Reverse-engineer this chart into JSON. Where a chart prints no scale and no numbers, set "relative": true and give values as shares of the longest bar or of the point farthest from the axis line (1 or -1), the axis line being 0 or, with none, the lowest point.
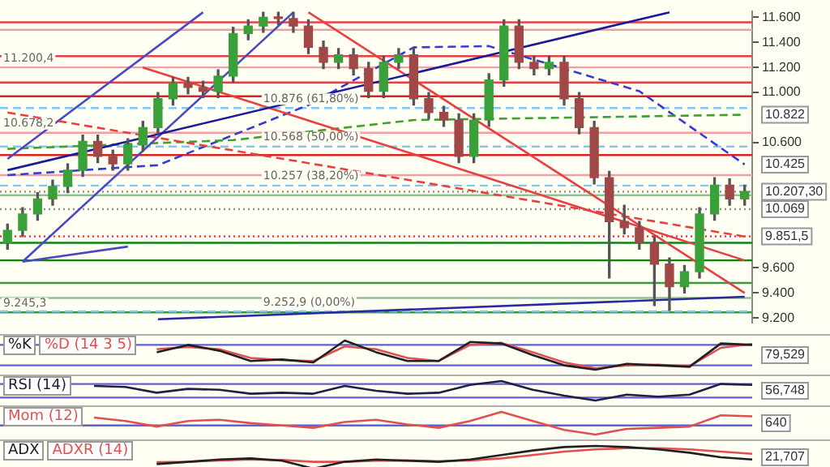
{
  "chart_data": [
    {
      "type": "candlestick",
      "categories": [
        null,
        null,
        null,
        null,
        null,
        null,
        null,
        null,
        null,
        null,
        null,
        null,
        null,
        null,
        null,
        null,
        null,
        null,
        null,
        null,
        null,
        null,
        null,
        null,
        null,
        null,
        null,
        null,
        null,
        null,
        null,
        null,
        null,
        null,
        null,
        null,
        null,
        null,
        null,
        null,
        null,
        null,
        null,
        null,
        null,
        null,
        null,
        null,
        null,
        null
      ],
      "ohlc": [
        [
          9.8,
          9.95,
          9.75,
          9.9
        ],
        [
          9.9,
          10.08,
          9.85,
          10.03
        ],
        [
          10.03,
          10.2,
          9.98,
          10.15
        ],
        [
          10.15,
          10.3,
          10.1,
          10.25
        ],
        [
          10.25,
          10.43,
          10.2,
          10.38
        ],
        [
          10.38,
          10.66,
          10.33,
          10.61
        ],
        [
          10.61,
          10.66,
          10.44,
          10.49
        ],
        [
          10.49,
          10.54,
          10.38,
          10.43
        ],
        [
          10.43,
          10.63,
          10.38,
          10.58
        ],
        [
          10.58,
          10.77,
          10.53,
          10.72
        ],
        [
          10.72,
          11,
          10.67,
          10.95
        ],
        [
          10.95,
          11.12,
          10.9,
          11.07
        ],
        [
          11.07,
          11.12,
          10.99,
          11.04
        ],
        [
          11.04,
          11.09,
          10.96,
          11.01
        ],
        [
          11.01,
          11.18,
          10.96,
          11.13
        ],
        [
          11.13,
          11.52,
          11.08,
          11.47
        ],
        [
          11.47,
          11.58,
          11.42,
          11.53
        ],
        [
          11.53,
          11.64,
          11.48,
          11.6
        ],
        [
          11.6,
          11.64,
          11.54,
          11.59
        ],
        [
          11.59,
          11.64,
          11.48,
          11.53
        ],
        [
          11.53,
          11.58,
          11.31,
          11.36
        ],
        [
          11.36,
          11.41,
          11.19,
          11.24
        ],
        [
          11.24,
          11.35,
          11.19,
          11.3
        ],
        [
          11.3,
          11.35,
          11.14,
          11.19
        ],
        [
          11.19,
          11.24,
          10.96,
          11.01
        ],
        [
          11.01,
          11.29,
          10.96,
          11.24
        ],
        [
          11.24,
          11.35,
          11.19,
          11.3
        ],
        [
          11.3,
          11.35,
          10.9,
          10.95
        ],
        [
          10.95,
          11,
          10.79,
          10.84
        ],
        [
          10.84,
          10.89,
          10.73,
          10.78
        ],
        [
          10.78,
          10.83,
          10.44,
          10.49
        ],
        [
          10.49,
          10.83,
          10.44,
          10.78
        ],
        [
          10.78,
          11.15,
          10.73,
          11.1
        ],
        [
          11.1,
          11.58,
          11.05,
          11.53
        ],
        [
          11.53,
          11.58,
          11.19,
          11.24
        ],
        [
          11.24,
          11.29,
          11.14,
          11.19
        ],
        [
          11.19,
          11.29,
          11.14,
          11.24
        ],
        [
          11.24,
          11.29,
          10.9,
          10.95
        ],
        [
          10.95,
          11,
          10.67,
          10.72
        ],
        [
          10.72,
          10.77,
          10.27,
          10.32
        ],
        [
          10.32,
          10.37,
          9.52,
          9.97
        ],
        [
          9.97,
          10.1,
          9.87,
          9.92
        ],
        [
          9.92,
          9.97,
          9.75,
          9.8
        ],
        [
          9.8,
          9.85,
          9.3,
          9.63
        ],
        [
          9.63,
          9.68,
          9.26,
          9.45
        ],
        [
          9.45,
          9.62,
          9.4,
          9.57
        ],
        [
          9.57,
          10.08,
          9.52,
          10.03
        ],
        [
          10.03,
          10.32,
          9.98,
          10.26
        ],
        [
          10.26,
          10.31,
          10.1,
          10.15
        ],
        [
          10.15,
          10.26,
          10.1,
          10.21
        ]
      ],
      "series": [
        {
          "type": "line",
          "color": "#1a1a9a",
          "values": [
            10.38,
            null,
            null,
            null,
            null,
            null,
            null,
            null,
            null,
            null,
            null,
            null,
            null,
            null,
            null,
            null,
            null,
            null,
            null,
            null,
            null,
            null,
            null,
            null,
            null,
            null,
            null,
            null,
            null,
            null,
            null,
            null,
            null,
            null,
            null,
            null,
            null,
            null,
            null,
            null,
            null,
            null,
            null,
            null,
            11.64,
            null,
            null,
            null,
            null,
            null
          ]
        },
        {
          "type": "line",
          "color": "#e84040",
          "values": [
            null,
            null,
            null,
            null,
            null,
            null,
            null,
            null,
            null,
            11.2,
            null,
            null,
            null,
            null,
            null,
            null,
            null,
            null,
            null,
            null,
            null,
            null,
            null,
            null,
            null,
            null,
            null,
            null,
            null,
            null,
            null,
            null,
            null,
            null,
            null,
            null,
            null,
            null,
            null,
            null,
            null,
            null,
            null,
            null,
            null,
            null,
            null,
            null,
            null,
            9.66
          ]
        },
        {
          "type": "line",
          "color": "#e84040",
          "values": [
            null,
            null,
            null,
            null,
            null,
            null,
            null,
            null,
            null,
            null,
            null,
            null,
            null,
            null,
            null,
            null,
            null,
            null,
            null,
            null,
            11.64,
            null,
            null,
            null,
            null,
            null,
            null,
            null,
            null,
            null,
            null,
            null,
            null,
            null,
            null,
            null,
            null,
            null,
            null,
            null,
            null,
            null,
            null,
            null,
            null,
            null,
            null,
            null,
            null,
            9.4
          ]
        },
        {
          "type": "line",
          "color": "#e84040",
          "line_style": "dashed",
          "values": [
            10.84,
            null,
            null,
            null,
            null,
            null,
            null,
            null,
            null,
            null,
            null,
            null,
            null,
            null,
            null,
            null,
            null,
            null,
            null,
            null,
            null,
            null,
            null,
            null,
            null,
            null,
            null,
            null,
            null,
            null,
            null,
            null,
            null,
            null,
            null,
            null,
            null,
            null,
            null,
            null,
            null,
            null,
            null,
            null,
            null,
            null,
            null,
            null,
            null,
            9.85
          ]
        },
        {
          "type": "line",
          "color": "#4a4ac0",
          "values": [
            10.47,
            null,
            null,
            null,
            null,
            null,
            null,
            null,
            null,
            null,
            null,
            null,
            null,
            11.64,
            null,
            null,
            null,
            null,
            null,
            null,
            null,
            null,
            null,
            null,
            null,
            null,
            null,
            null,
            null,
            null,
            null,
            null,
            null,
            null,
            null,
            null,
            null,
            null,
            null,
            null,
            null,
            null,
            null,
            null,
            null,
            null,
            null,
            null,
            null,
            null
          ]
        },
        {
          "type": "line",
          "color": "#4a4ac0",
          "values": [
            null,
            9.65,
            null,
            null,
            null,
            null,
            null,
            null,
            null,
            null,
            null,
            null,
            null,
            null,
            null,
            null,
            null,
            null,
            null,
            11.64,
            null,
            null,
            null,
            null,
            null,
            null,
            null,
            null,
            null,
            null,
            null,
            null,
            null,
            null,
            null,
            null,
            null,
            null,
            null,
            null,
            null,
            null,
            null,
            null,
            null,
            null,
            null,
            null,
            null,
            null
          ]
        },
        {
          "type": "line",
          "color": "#2a2aa0",
          "values": [
            null,
            null,
            null,
            null,
            null,
            null,
            null,
            null,
            null,
            null,
            9.19,
            null,
            null,
            null,
            null,
            null,
            null,
            null,
            null,
            null,
            null,
            null,
            null,
            null,
            null,
            null,
            null,
            null,
            null,
            null,
            null,
            null,
            null,
            null,
            null,
            null,
            null,
            null,
            null,
            null,
            null,
            null,
            null,
            null,
            null,
            null,
            null,
            null,
            null,
            9.37
          ]
        },
        {
          "type": "line",
          "color": "#4a4ac0",
          "values": [
            null,
            9.65,
            null,
            null,
            null,
            null,
            null,
            null,
            9.77,
            null,
            null,
            null,
            null,
            null,
            null,
            null,
            null,
            null,
            null,
            null,
            null,
            null,
            null,
            null,
            null,
            null,
            null,
            null,
            null,
            null,
            null,
            null,
            null,
            null,
            null,
            null,
            null,
            null,
            null,
            null,
            null,
            null,
            null,
            null,
            null,
            null,
            null,
            null,
            null,
            null
          ]
        },
        {
          "type": "line",
          "color": "#40a030",
          "line_style": "dashed",
          "values": [
            10.55,
            null,
            null,
            null,
            null,
            null,
            null,
            null,
            null,
            null,
            null,
            null,
            null,
            null,
            null,
            10.62,
            null,
            null,
            null,
            null,
            null,
            null,
            null,
            null,
            null,
            null,
            null,
            10.78,
            null,
            null,
            null,
            null,
            null,
            null,
            null,
            null,
            null,
            null,
            null,
            null,
            null,
            null,
            null,
            null,
            null,
            null,
            null,
            null,
            null,
            10.822
          ],
          "value_labels": [
            null,
            null,
            null,
            null,
            null,
            null,
            null,
            null,
            null,
            null,
            null,
            null,
            null,
            null,
            null,
            null,
            null,
            null,
            null,
            null,
            null,
            null,
            null,
            null,
            null,
            null,
            null,
            null,
            null,
            null,
            null,
            null,
            null,
            null,
            null,
            null,
            null,
            null,
            null,
            null,
            null,
            null,
            null,
            null,
            null,
            null,
            null,
            null,
            null,
            "10.822"
          ]
        },
        {
          "type": "line",
          "color": "#3a3ad0",
          "line_style": "dashed",
          "values": [
            10.34,
            null,
            null,
            null,
            null,
            null,
            null,
            null,
            null,
            null,
            10.42,
            null,
            null,
            null,
            null,
            null,
            null,
            null,
            null,
            null,
            10.9,
            null,
            null,
            null,
            null,
            null,
            null,
            11.36,
            null,
            null,
            null,
            null,
            11.37,
            null,
            null,
            null,
            null,
            null,
            null,
            null,
            null,
            null,
            11.01,
            null,
            null,
            null,
            null,
            null,
            null,
            10.425
          ],
          "value_labels": [
            null,
            null,
            null,
            null,
            null,
            null,
            null,
            null,
            null,
            null,
            null,
            null,
            null,
            null,
            null,
            null,
            null,
            null,
            null,
            null,
            null,
            null,
            null,
            null,
            null,
            null,
            null,
            null,
            null,
            null,
            null,
            null,
            null,
            null,
            null,
            null,
            null,
            null,
            null,
            null,
            null,
            null,
            null,
            null,
            null,
            null,
            null,
            null,
            null,
            "10.425"
          ]
        }
      ],
      "ylim": [
        9.16,
        11.65
      ],
      "yticks": [
        {
          "value": 9.2,
          "label": "9.200"
        },
        {
          "value": 9.4,
          "label": "9.400"
        },
        {
          "value": 9.6,
          "label": "9.600"
        },
        {
          "value": 9.8,
          "label": null
        },
        {
          "value": 10.2,
          "label": null
        },
        {
          "value": 10.6,
          "label": "10.600"
        },
        {
          "value": 11,
          "label": "11.000"
        },
        {
          "value": 11.2,
          "label": "11.200"
        },
        {
          "value": 11.4,
          "label": "11.400"
        },
        {
          "value": 11.6,
          "label": "11.600"
        }
      ],
      "tick_labels": "y",
      "grid": false,
      "marker": "none",
      "ref_lines": [
        {
          "axis": "y",
          "value": 11.56,
          "color": "#e84040"
        },
        {
          "axis": "y",
          "value": 11.5,
          "color": "#f0a0a0"
        },
        {
          "axis": "y",
          "value": 11.29,
          "color": "#e84040"
        },
        {
          "axis": "y",
          "value": 11.2004,
          "color": "#f0a0a0",
          "label": "11.200,4"
        },
        {
          "axis": "y",
          "value": 11.08,
          "color": "#e84040"
        },
        {
          "axis": "y",
          "value": 10.97,
          "color": "#e02020"
        },
        {
          "axis": "y",
          "value": 10.6782,
          "color": "#f0a0a0",
          "label": "10.678,2"
        },
        {
          "axis": "y",
          "value": 10.5,
          "color": "#e02020"
        },
        {
          "axis": "y",
          "value": 10.34,
          "color": "#f0a0a0"
        },
        {
          "axis": "y",
          "value": 10.18,
          "color": "#90c090"
        },
        {
          "axis": "y",
          "value": 10.069,
          "color": "#909090",
          "line_style": "dotted",
          "label": "10.069"
        },
        {
          "axis": "y",
          "value": 10.2073,
          "color": "#909090",
          "line_style": "dotted",
          "label": "10.207,30"
        },
        {
          "axis": "y",
          "value": 9.8515,
          "color": "#e84040",
          "line_style": "dotted",
          "label": "9.851,5"
        },
        {
          "axis": "y",
          "value": 9.8,
          "color": "#108010"
        },
        {
          "axis": "y",
          "value": 9.66,
          "color": "#108010"
        },
        {
          "axis": "y",
          "value": 9.48,
          "color": "#3a9a3a"
        },
        {
          "axis": "y",
          "value": 9.36,
          "color": "#90c090"
        },
        {
          "axis": "y",
          "value": 9.2453,
          "color": "#3a9a3a",
          "label": "9.245,3"
        },
        {
          "axis": "y",
          "value": 10.876,
          "color": "#80c8f0",
          "line_style": "dashed",
          "label": "10.876 (61,80%)"
        },
        {
          "axis": "y",
          "value": 10.568,
          "color": "#80c8f0",
          "line_style": "dashed",
          "label": "10.568 (50,00%)"
        },
        {
          "axis": "y",
          "value": 10.257,
          "color": "#80c8f0",
          "line_style": "dashed",
          "label": "10.257 (38,20%)"
        },
        {
          "axis": "y",
          "value": 9.2529,
          "color": "#80c8f0",
          "line_style": "dashed",
          "label": "9.252,9 (0,00%)"
        }
      ]
    },
    {
      "type": "line",
      "relative": true,
      "marker": "none",
      "legend": "top left",
      "categories": [
        null,
        null,
        null,
        null,
        null,
        null,
        null,
        null,
        null,
        null,
        null,
        null,
        null,
        null,
        null,
        null,
        null,
        null,
        null,
        null,
        null,
        null,
        null,
        null,
        null
      ],
      "series": [
        {
          "name": "%K",
          "color": "#202020",
          "values": [
            null,
            null,
            null,
            null,
            null,
            0.6,
            0.85,
            0.65,
            0.3,
            0.35,
            0.25,
            1,
            0.6,
            0.3,
            0.3,
            0.95,
            0.9,
            0.5,
            0.15,
            0,
            0.2,
            0.15,
            0.1,
            0.9,
            0.85
          ]
        },
        {
          "name": "%D (14 3 5)",
          "color": "#e05050",
          "values": [
            null,
            null,
            null,
            null,
            null,
            0.7,
            0.78,
            0.7,
            0.4,
            0.33,
            0.3,
            0.8,
            0.7,
            0.4,
            0.3,
            0.85,
            0.92,
            0.6,
            0.25,
            0.05,
            0.15,
            0.17,
            0.12,
            0.75,
            0.88
          ]
        }
      ],
      "ref_lines": [
        {
          "axis": "y",
          "value": 0.85,
          "color": "#6060d0"
        },
        {
          "axis": "y",
          "value": 0.15,
          "color": "#6060d0"
        }
      ],
      "annotations": [
        "79,529"
      ]
    },
    {
      "type": "line",
      "relative": true,
      "marker": "none",
      "legend": "top left",
      "categories": [
        null,
        null,
        null,
        null,
        null,
        null,
        null,
        null,
        null,
        null,
        null,
        null,
        null,
        null,
        null,
        null,
        null,
        null,
        null,
        null,
        null,
        null,
        null,
        null,
        null
      ],
      "series": [
        {
          "name": "RSI (14)",
          "color": "#202040",
          "values": [
            null,
            null,
            null,
            0.75,
            0.7,
            0.4,
            0.6,
            0.55,
            0.35,
            0.4,
            0.35,
            0.75,
            0.5,
            0.35,
            0.4,
            0.8,
            1,
            0.55,
            0.25,
            0,
            0.3,
            0.2,
            0.3,
            0.85,
            0.8
          ]
        }
      ],
      "ref_lines": [
        {
          "axis": "y",
          "value": 0.85,
          "color": "#6060d0"
        },
        {
          "axis": "y",
          "value": 0.15,
          "color": "#6060d0"
        }
      ],
      "annotations": [
        "56,748"
      ]
    },
    {
      "type": "line",
      "relative": true,
      "marker": "none",
      "legend": "top left",
      "categories": [
        null,
        null,
        null,
        null,
        null,
        null,
        null,
        null,
        null,
        null,
        null,
        null,
        null,
        null,
        null,
        null,
        null,
        null,
        null,
        null,
        null,
        null,
        null,
        null,
        null
      ],
      "series": [
        {
          "name": "Mom (12)",
          "color": "#e05050",
          "values": [
            null,
            null,
            null,
            0.58,
            0.33,
            -0.08,
            0.33,
            0.42,
            0.17,
            0,
            -0.17,
            0.25,
            0.42,
            0.08,
            -0.17,
            0.33,
            1,
            0.33,
            -0.33,
            -0.67,
            -0.25,
            -0.17,
            -0.08,
            0.75,
            0.67
          ]
        }
      ],
      "ref_lines": [
        {
          "axis": "y",
          "value": 0,
          "color": "#6060d0"
        }
      ],
      "annotations": [
        "640"
      ]
    },
    {
      "type": "line",
      "relative": true,
      "marker": "none",
      "legend": "top left",
      "categories": [
        null,
        null,
        null,
        null,
        null,
        null,
        null,
        null,
        null,
        null,
        null,
        null,
        null,
        null,
        null,
        null,
        null,
        null,
        null,
        null,
        null,
        null,
        null,
        null,
        null
      ],
      "series": [
        {
          "name": "ADX",
          "color": "#202020",
          "values": [
            null,
            null,
            null,
            null,
            null,
            0.2,
            0.3,
            0.4,
            0.45,
            0.35,
            0,
            0.3,
            0.4,
            0.35,
            0.3,
            0.4,
            0.6,
            0.8,
            0.95,
            1,
            0.95,
            0.85,
            0.7,
            0.5,
            0.4
          ]
        },
        {
          "name": "ADXR (14)",
          "color": "#e05050",
          "values": [
            null,
            null,
            null,
            null,
            null,
            0.28,
            0.3,
            0.36,
            0.4,
            0.38,
            0.3,
            0.3,
            0.35,
            0.36,
            0.33,
            0.36,
            0.45,
            0.6,
            0.75,
            0.85,
            0.9,
            0.9,
            0.85,
            0.75,
            0.65
          ]
        }
      ],
      "annotations": [
        "21,707"
      ]
    }
  ]
}
